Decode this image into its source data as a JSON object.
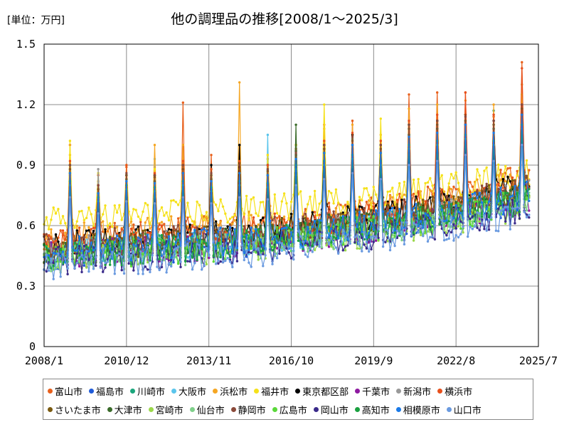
{
  "header": {
    "unit_label": "[単位：万円]",
    "title": "他の調理品の推移[2008/1～2025/3]"
  },
  "chart_data": {
    "type": "line",
    "title": "他の調理品の推移[2008/1～2025/3]",
    "ylabel": "単位：万円",
    "xlabel": "",
    "ylim": [
      0,
      1.5
    ],
    "y_ticks": [
      "0",
      "0.3",
      "0.6",
      "0.9",
      "1.2",
      "1.5"
    ],
    "x_ticks": [
      "2008/1",
      "2010/12",
      "2013/11",
      "2016/10",
      "2019/9",
      "2022/8",
      "2025/7"
    ],
    "grid": true,
    "legend_position": "bottom",
    "x_range": [
      "2008/1",
      "2025/7"
    ],
    "x_last": "2025/3",
    "series": [
      {
        "name": "富山市",
        "color": "#e8601c",
        "base": [
          0.52,
          0.55,
          0.57,
          0.6,
          0.64,
          0.69,
          0.76,
          0.84
        ],
        "peaks": [
          1.0,
          0.85,
          0.89,
          0.89,
          1.21,
          0.95,
          1.0,
          0.93,
          1.0,
          1.1,
          1.12,
          1.02,
          1.25,
          1.26,
          1.26,
          1.14,
          1.41
        ]
      },
      {
        "name": "福島市",
        "color": "#1f5bd8",
        "base": [
          0.45,
          0.47,
          0.49,
          0.51,
          0.55,
          0.6,
          0.66,
          0.73
        ],
        "peaks": [
          0.85,
          0.72,
          0.8,
          0.78,
          0.85,
          0.8,
          0.85,
          0.82,
          0.92,
          0.95,
          0.98,
          0.95,
          1.01,
          1.05,
          1.1,
          1.12,
          1.3
        ]
      },
      {
        "name": "川崎市",
        "color": "#1aa67c",
        "base": [
          0.47,
          0.49,
          0.51,
          0.53,
          0.57,
          0.62,
          0.68,
          0.76
        ],
        "peaks": [
          0.9,
          0.78,
          0.85,
          0.85,
          0.9,
          0.85,
          0.88,
          0.86,
          0.98,
          1.0,
          1.03,
          1.0,
          1.1,
          1.12,
          1.15,
          1.17,
          1.25
        ]
      },
      {
        "name": "大阪市",
        "color": "#5bc5ec",
        "base": [
          0.46,
          0.48,
          0.5,
          0.52,
          0.56,
          0.61,
          0.67,
          0.74
        ],
        "peaks": [
          0.82,
          0.74,
          0.8,
          0.93,
          0.85,
          0.82,
          0.84,
          1.05,
          0.95,
          0.98,
          1.0,
          0.97,
          1.05,
          1.1,
          1.12,
          1.15,
          1.2
        ]
      },
      {
        "name": "浜松市",
        "color": "#f5a623",
        "base": [
          0.54,
          0.56,
          0.58,
          0.6,
          0.63,
          0.68,
          0.74,
          0.82
        ],
        "peaks": [
          0.95,
          0.82,
          0.9,
          1.0,
          1.0,
          0.9,
          1.31,
          0.95,
          1.0,
          1.08,
          1.1,
          1.05,
          1.18,
          1.2,
          1.22,
          1.2,
          1.3
        ]
      },
      {
        "name": "福井市",
        "color": "#f5e11a",
        "base": [
          0.62,
          0.64,
          0.66,
          0.68,
          0.71,
          0.75,
          0.8,
          0.87
        ],
        "peaks": [
          1.02,
          0.86,
          0.9,
          0.88,
          0.9,
          0.88,
          0.9,
          0.95,
          1.0,
          1.2,
          1.05,
          1.13,
          1.1,
          1.12,
          1.15,
          1.1,
          1.25
        ]
      },
      {
        "name": "東京都区部",
        "color": "#000000",
        "base": [
          0.5,
          0.52,
          0.55,
          0.57,
          0.61,
          0.66,
          0.72,
          0.8
        ],
        "peaks": [
          0.9,
          0.8,
          0.85,
          0.85,
          0.9,
          0.9,
          1.0,
          0.9,
          0.97,
          1.0,
          1.05,
          1.0,
          1.1,
          1.12,
          1.15,
          1.12,
          1.13
        ]
      },
      {
        "name": "千葉市",
        "color": "#8e1aa0",
        "base": [
          0.45,
          0.47,
          0.49,
          0.51,
          0.55,
          0.59,
          0.65,
          0.72
        ],
        "peaks": [
          0.8,
          0.7,
          0.78,
          0.76,
          0.82,
          0.78,
          0.8,
          0.8,
          0.88,
          0.92,
          0.95,
          0.92,
          0.98,
          1.0,
          1.02,
          1.0,
          1.1
        ]
      },
      {
        "name": "新潟市",
        "color": "#999999",
        "base": [
          0.48,
          0.5,
          0.52,
          0.54,
          0.58,
          0.63,
          0.69,
          0.77
        ],
        "peaks": [
          0.85,
          0.88,
          0.82,
          0.8,
          0.85,
          0.82,
          0.86,
          0.9,
          0.95,
          0.98,
          1.0,
          0.97,
          1.05,
          1.08,
          1.1,
          1.1,
          1.2
        ]
      },
      {
        "name": "横浜市",
        "color": "#e8501c",
        "base": [
          0.51,
          0.53,
          0.55,
          0.58,
          0.62,
          0.67,
          0.73,
          0.81
        ],
        "peaks": [
          0.92,
          0.8,
          0.9,
          0.86,
          0.92,
          0.88,
          0.92,
          0.9,
          0.98,
          1.02,
          1.06,
          1.02,
          1.12,
          1.15,
          1.26,
          1.15,
          1.38
        ]
      },
      {
        "name": "さいたま市",
        "color": "#7a5a10",
        "base": [
          0.48,
          0.5,
          0.52,
          0.55,
          0.59,
          0.64,
          0.7,
          0.78
        ],
        "peaks": [
          0.88,
          0.78,
          0.85,
          0.84,
          0.88,
          0.85,
          0.88,
          0.87,
          0.95,
          0.98,
          1.02,
          0.98,
          1.08,
          1.1,
          1.12,
          1.1,
          1.18
        ]
      },
      {
        "name": "大津市",
        "color": "#3a6b2a",
        "base": [
          0.47,
          0.49,
          0.51,
          0.54,
          0.58,
          0.62,
          0.68,
          0.76
        ],
        "peaks": [
          0.86,
          0.76,
          0.83,
          0.82,
          0.86,
          0.83,
          0.86,
          0.85,
          1.1,
          0.96,
          1.0,
          0.96,
          1.05,
          1.08,
          1.1,
          1.08,
          1.15
        ]
      },
      {
        "name": "宮崎市",
        "color": "#9bd84a",
        "base": [
          0.43,
          0.45,
          0.47,
          0.49,
          0.53,
          0.57,
          0.63,
          0.7
        ],
        "peaks": [
          0.78,
          0.7,
          0.75,
          0.74,
          0.78,
          0.75,
          0.78,
          0.77,
          0.85,
          0.88,
          0.9,
          0.88,
          0.95,
          0.98,
          1.0,
          0.98,
          1.05
        ]
      },
      {
        "name": "仙台市",
        "color": "#7fd08a",
        "base": [
          0.44,
          0.46,
          0.48,
          0.5,
          0.54,
          0.58,
          0.64,
          0.71
        ],
        "peaks": [
          0.8,
          0.72,
          0.77,
          0.76,
          0.8,
          0.77,
          0.8,
          0.79,
          0.87,
          0.9,
          0.92,
          0.9,
          0.97,
          1.0,
          1.02,
          1.0,
          1.08
        ]
      },
      {
        "name": "静岡市",
        "color": "#8a4a3a",
        "base": [
          0.5,
          0.52,
          0.54,
          0.56,
          0.6,
          0.65,
          0.71,
          0.79
        ],
        "peaks": [
          0.9,
          0.8,
          0.86,
          0.85,
          0.9,
          0.86,
          0.9,
          0.88,
          0.96,
          1.0,
          1.04,
          1.0,
          1.1,
          1.12,
          1.14,
          1.12,
          1.2
        ]
      },
      {
        "name": "広島市",
        "color": "#5ad83a",
        "base": [
          0.44,
          0.46,
          0.48,
          0.51,
          0.55,
          0.59,
          0.65,
          0.72
        ],
        "peaks": [
          0.8,
          0.72,
          0.78,
          0.77,
          0.8,
          0.77,
          0.8,
          0.79,
          0.88,
          0.9,
          0.93,
          0.9,
          0.98,
          1.0,
          1.03,
          1.0,
          1.1
        ]
      },
      {
        "name": "岡山市",
        "color": "#3a2a8a",
        "base": [
          0.42,
          0.44,
          0.46,
          0.48,
          0.52,
          0.56,
          0.62,
          0.69
        ],
        "peaks": [
          0.76,
          0.68,
          0.74,
          0.73,
          0.76,
          0.73,
          0.76,
          0.75,
          0.83,
          0.86,
          0.88,
          0.86,
          0.93,
          0.96,
          0.98,
          0.96,
          1.02
        ]
      },
      {
        "name": "高知市",
        "color": "#1aa040",
        "base": [
          0.45,
          0.47,
          0.49,
          0.52,
          0.56,
          0.6,
          0.66,
          0.73
        ],
        "peaks": [
          0.82,
          0.74,
          0.8,
          0.79,
          0.82,
          0.79,
          0.82,
          0.81,
          0.9,
          0.92,
          0.95,
          0.92,
          1.0,
          1.02,
          1.05,
          1.02,
          1.1
        ]
      },
      {
        "name": "相模原市",
        "color": "#1a7ae8",
        "base": [
          0.47,
          0.49,
          0.51,
          0.53,
          0.57,
          0.62,
          0.68,
          0.75
        ],
        "peaks": [
          0.86,
          0.76,
          0.82,
          0.81,
          0.86,
          0.82,
          0.86,
          0.85,
          0.93,
          0.96,
          1.0,
          0.96,
          1.04,
          1.06,
          1.1,
          1.06,
          1.15
        ]
      },
      {
        "name": "山口市",
        "color": "#6a9ae0",
        "base": [
          0.4,
          0.42,
          0.44,
          0.46,
          0.5,
          0.54,
          0.6,
          0.67
        ],
        "peaks": [
          0.74,
          0.66,
          0.72,
          0.71,
          0.74,
          0.71,
          0.74,
          0.73,
          0.8,
          0.83,
          0.86,
          0.83,
          0.9,
          0.92,
          0.95,
          0.92,
          1.0
        ]
      }
    ]
  }
}
